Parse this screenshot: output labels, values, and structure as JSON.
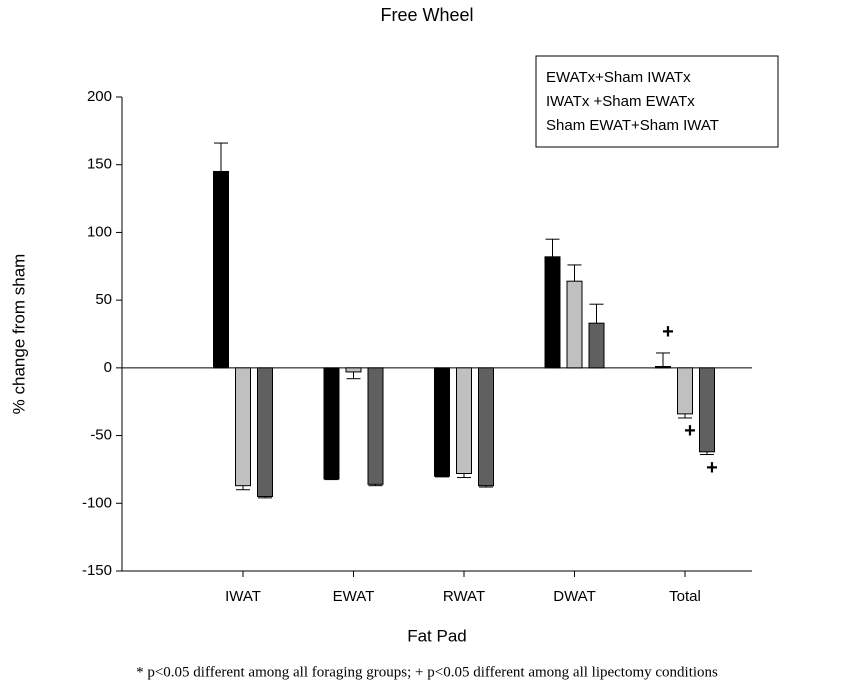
{
  "chart_data": {
    "type": "bar",
    "title": "Free Wheel",
    "xlabel": "Fat Pad",
    "ylabel": "% change from sham",
    "footnote": "* p<0.05 different among all foraging groups; + p<0.05 different among all lipectomy conditions",
    "categories": [
      "IWAT",
      "EWAT",
      "RWAT",
      "DWAT",
      "Total"
    ],
    "series": [
      {
        "name": "EWATx+Sham IWATx",
        "color": "#000000",
        "values": [
          145,
          -82,
          -80,
          82,
          1
        ],
        "errors": [
          21,
          0.5,
          0.5,
          13,
          10
        ]
      },
      {
        "name": "IWATx +Sham EWATx",
        "color": "#c0c0c0",
        "values": [
          -87,
          -3,
          -78,
          64,
          -34
        ],
        "errors": [
          3,
          5,
          3,
          12,
          3
        ]
      },
      {
        "name": "Sham EWAT+Sham IWAT",
        "color": "#606060",
        "values": [
          -95,
          -86,
          -87,
          33,
          -62
        ],
        "errors": [
          1,
          1,
          1,
          14,
          2
        ]
      }
    ],
    "annotations": [
      {
        "text": "+",
        "series": 0,
        "category": 4
      },
      {
        "text": "+",
        "series": 1,
        "category": 4
      },
      {
        "text": "+",
        "series": 2,
        "category": 4
      }
    ],
    "ylim": [
      -150,
      200
    ],
    "yticks": [
      -150,
      -100,
      -50,
      0,
      50,
      100,
      150,
      200
    ],
    "legend": "upper right"
  }
}
